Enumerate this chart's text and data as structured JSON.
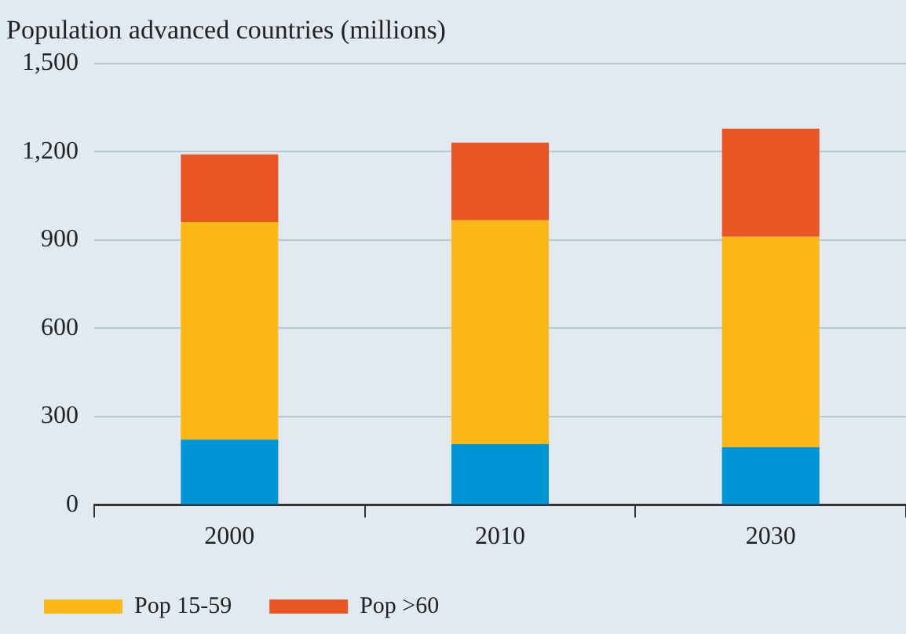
{
  "chart_data": {
    "type": "bar",
    "title": "Population advanced countries (millions)",
    "categories": [
      "2000",
      "2010",
      "2030"
    ],
    "stacked": true,
    "series": [
      {
        "color": "#0096d6",
        "values": [
          222,
          207,
          196
        ]
      },
      {
        "name": "Pop 15-59",
        "color": "#fbb817",
        "values": [
          739,
          760,
          715
        ]
      },
      {
        "name": "Pop >60",
        "color": "#e85624",
        "values": [
          230,
          264,
          367
        ]
      }
    ],
    "ylim": [
      0,
      1500
    ],
    "yticks": [
      {
        "value": 0,
        "label": "0"
      },
      {
        "value": 300,
        "label": "300"
      },
      {
        "value": 600,
        "label": "600"
      },
      {
        "value": 900,
        "label": "900"
      },
      {
        "value": 1200,
        "label": "1,200"
      },
      {
        "value": 1500,
        "label": "1,500"
      }
    ],
    "grid": "y",
    "legend": "bottom"
  }
}
